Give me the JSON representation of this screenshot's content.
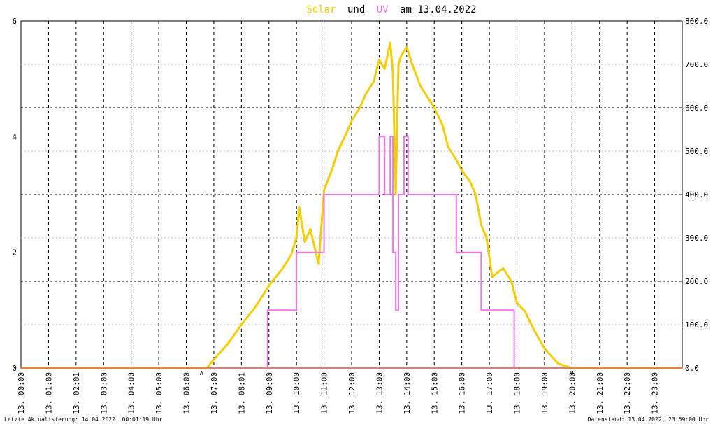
{
  "title": {
    "part1": "Solar",
    "part2": "und",
    "part3": "UV",
    "part4": "am 13.04.2022"
  },
  "colors": {
    "solar": "#f5cc00",
    "uv": "#ee77ee",
    "baseline": "#ee7766",
    "grid_major": "#000000",
    "grid_minor": "#bbbbbb",
    "marker": "#c0392b"
  },
  "footer": {
    "left": "Letzte Aktualisierung: 14.04.2022, 00:01:19 Uhr",
    "right": "Datenstand: 13.04.2022, 23:59:00 Uhr"
  },
  "chart_data": {
    "type": "line",
    "title": "Solar und UV am 13.04.2022",
    "x_tick_labels": [
      "13. 00:00",
      "13. 01:00",
      "13. 02:01",
      "13. 03:00",
      "13. 04:00",
      "13. 05:00",
      "13. 06:00",
      "13. 07:00",
      "13. 08:01",
      "13. 09:00",
      "13. 10:00",
      "13. 11:00",
      "13. 12:00",
      "13. 13:00",
      "13. 14:00",
      "13. 15:00",
      "13. 16:00",
      "13. 17:00",
      "13. 18:00",
      "13. 19:00",
      "13. 20:00",
      "13. 21:00",
      "13. 22:00",
      "13. 23:00"
    ],
    "y_left": {
      "range": [
        0,
        6
      ],
      "ticks": [
        "0",
        "2",
        "4",
        "6"
      ]
    },
    "y_right": {
      "range": [
        0,
        800
      ],
      "ticks": [
        "0.0",
        "100.0",
        "200.0",
        "300.0",
        "400.0",
        "500.0",
        "600.0",
        "700.0",
        "800.0"
      ]
    },
    "markers": {
      "sunrise": "A",
      "sunset": "U",
      "sunrise_hour": 6.55,
      "sunset_hour": 20.0
    },
    "series": [
      {
        "axis": "right",
        "x_hours": [
          0,
          6.75,
          7.0,
          7.5,
          8.0,
          8.5,
          9.0,
          9.5,
          9.8,
          10.0,
          10.1,
          10.3,
          10.5,
          10.8,
          11.0,
          11.3,
          11.5,
          11.8,
          12.0,
          12.3,
          12.5,
          12.8,
          13.0,
          13.2,
          13.4,
          13.5,
          13.6,
          13.7,
          13.8,
          14.0,
          14.2,
          14.5,
          14.8,
          15.0,
          15.3,
          15.5,
          15.8,
          16.0,
          16.3,
          16.5,
          16.7,
          16.9,
          17.1,
          17.5,
          17.8,
          18.0,
          18.3,
          18.6,
          19.0,
          19.5,
          20.0,
          24
        ],
        "values": [
          0,
          0,
          20,
          55,
          100,
          140,
          190,
          230,
          260,
          300,
          370,
          290,
          320,
          240,
          410,
          460,
          500,
          540,
          570,
          600,
          630,
          660,
          710,
          690,
          750,
          680,
          400,
          700,
          720,
          740,
          700,
          650,
          620,
          600,
          560,
          510,
          480,
          455,
          430,
          400,
          330,
          300,
          210,
          230,
          200,
          150,
          130,
          90,
          45,
          10,
          0,
          0
        ]
      },
      {
        "axis": "left",
        "x_hours": [
          0,
          8.95,
          8.95,
          10.0,
          10.0,
          11.0,
          11.0,
          11.5,
          11.5,
          12.9,
          12.9,
          13.0,
          13.0,
          13.2,
          13.2,
          13.4,
          13.4,
          13.5,
          13.5,
          13.6,
          13.6,
          13.7,
          13.7,
          13.9,
          13.9,
          14.05,
          14.05,
          14.5,
          14.5,
          15.05,
          15.05,
          15.8,
          15.8,
          16.7,
          16.7,
          17.7,
          17.7,
          17.9,
          17.9,
          24
        ],
        "values": [
          0,
          0,
          1,
          1,
          2,
          2,
          3,
          3,
          3,
          3,
          3,
          3,
          4,
          4,
          3,
          3,
          4,
          4,
          2,
          2,
          1,
          1,
          3,
          3,
          4,
          4,
          3,
          3,
          3,
          3,
          3,
          3,
          2,
          2,
          1,
          1,
          1,
          1,
          0,
          0
        ]
      }
    ]
  }
}
